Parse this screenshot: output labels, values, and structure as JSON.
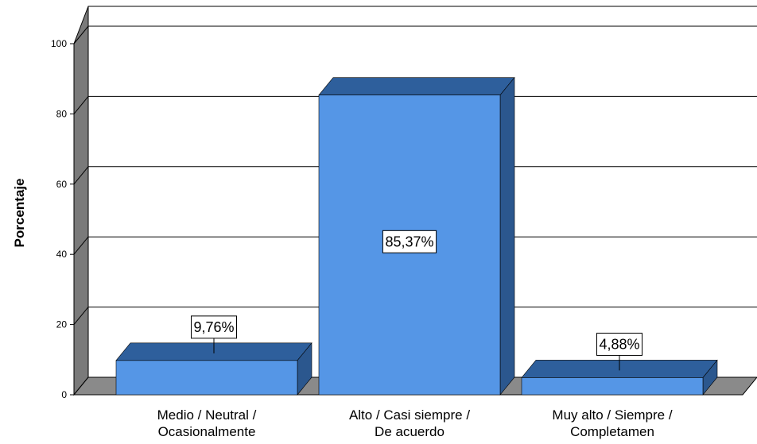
{
  "chart_data": {
    "type": "bar",
    "title": "",
    "xlabel": "",
    "ylabel": "Porcentaje",
    "ylim": [
      0,
      100
    ],
    "yticks": [
      0,
      20,
      40,
      60,
      80,
      100
    ],
    "grid": true,
    "three_d": true,
    "categories": [
      [
        "Medio / Neutral /",
        "Ocasionalmente"
      ],
      [
        "Alto / Casi siempre /",
        "De acuerdo"
      ],
      [
        "Muy alto / Siempre /",
        "Completamen"
      ]
    ],
    "values": [
      9.76,
      85.37,
      4.88
    ],
    "data_labels": [
      "9,76%",
      "85,37%",
      "4,88%"
    ],
    "colors": {
      "bar_front": "#5596E6",
      "bar_top": "#2E5F9C",
      "bar_side": "#2B578E",
      "wall_side": "#7a7a7a",
      "floor": "#8a8a8a",
      "grid": "#000000"
    }
  }
}
